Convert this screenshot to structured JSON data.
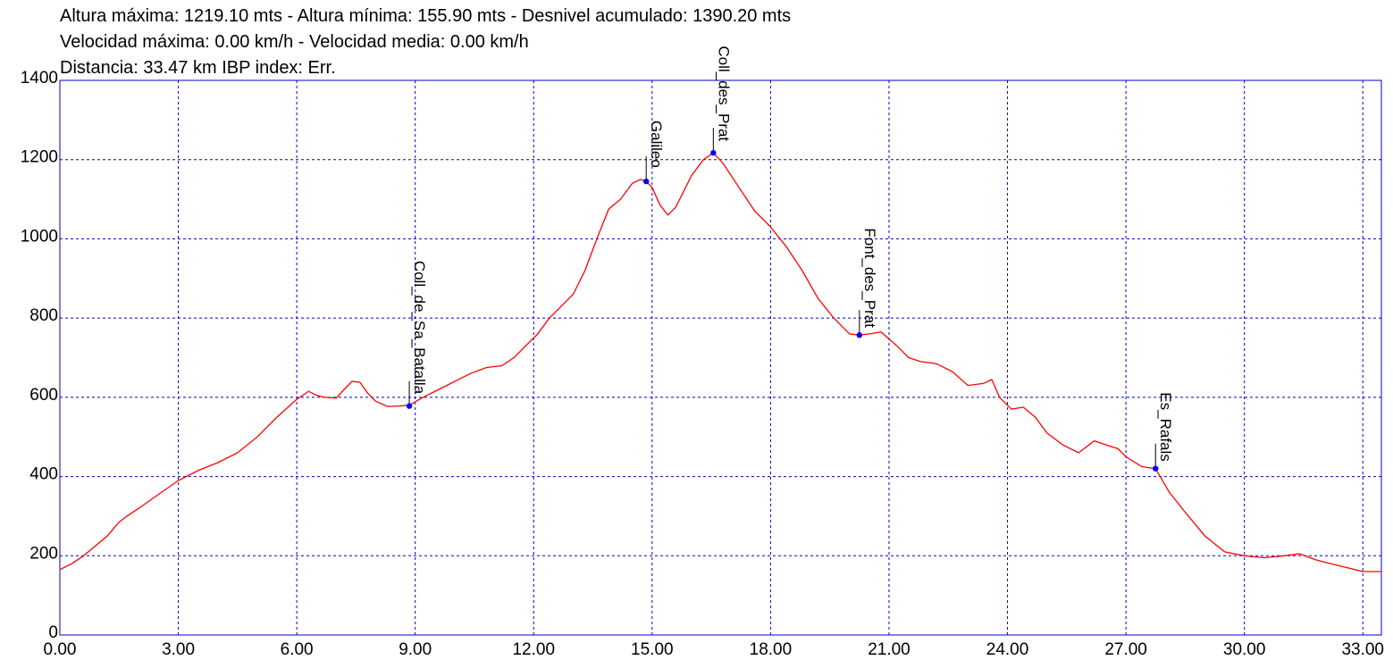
{
  "header": {
    "line1": "Altura máxima: 1219.10 mts - Altura mínima: 155.90 mts - Desnivel acumulado: 1390.20 mts",
    "line2": "Velocidad máxima: 0.00 km/h - Velocidad media: 0.00 km/h",
    "line3": "Distancia: 33.47 km IBP index: Err."
  },
  "colors": {
    "profile": "#ff0000",
    "grid": "#0000cc",
    "frame": "#0000cc",
    "waypoint": "#0000ff"
  },
  "chart_data": {
    "type": "line",
    "title": "",
    "xlabel": "",
    "ylabel": "",
    "xlim": [
      0,
      33.47
    ],
    "ylim": [
      0,
      1400
    ],
    "grid": true,
    "x_ticks": [
      "0.00",
      "3.00",
      "6.00",
      "9.00",
      "12.00",
      "15.00",
      "18.00",
      "21.00",
      "24.00",
      "27.00",
      "30.00",
      "33.00"
    ],
    "y_ticks": [
      "0",
      "200",
      "400",
      "600",
      "800",
      "1000",
      "1200",
      "1400"
    ],
    "series": [
      {
        "x": [
          0,
          0.3,
          0.6,
          0.9,
          1.2,
          1.5,
          1.7,
          2.0,
          2.5,
          3.0,
          3.5,
          4.0,
          4.5,
          5.0,
          5.5,
          6.0,
          6.3,
          6.5,
          6.7,
          7.0,
          7.2,
          7.4,
          7.6,
          7.8,
          8.0,
          8.3,
          8.6,
          8.85,
          9.2,
          9.6,
          10.0,
          10.4,
          10.8,
          11.2,
          11.5,
          11.8,
          12.1,
          12.4,
          12.7,
          13.0,
          13.3,
          13.6,
          13.9,
          14.2,
          14.5,
          14.7,
          14.85,
          15.0,
          15.2,
          15.4,
          15.6,
          15.8,
          16.0,
          16.3,
          16.55,
          16.8,
          17.2,
          17.6,
          18.0,
          18.4,
          18.8,
          19.2,
          19.6,
          20.0,
          20.25,
          20.5,
          20.8,
          21.2,
          21.5,
          21.8,
          22.2,
          22.6,
          23.0,
          23.4,
          23.6,
          23.8,
          24.1,
          24.4,
          24.7,
          25.0,
          25.4,
          25.8,
          26.2,
          26.5,
          26.8,
          27.0,
          27.4,
          27.75,
          28.1,
          28.5,
          29.0,
          29.5,
          30.0,
          30.5,
          31.0,
          31.4,
          31.8,
          32.2,
          32.6,
          33.0,
          33.47
        ],
        "y": [
          165,
          180,
          200,
          225,
          250,
          285,
          300,
          320,
          355,
          390,
          415,
          435,
          460,
          500,
          550,
          595,
          615,
          605,
          600,
          598,
          620,
          640,
          638,
          610,
          590,
          577,
          578,
          580,
          600,
          620,
          640,
          660,
          675,
          680,
          700,
          730,
          760,
          800,
          830,
          860,
          920,
          1000,
          1075,
          1100,
          1140,
          1150,
          1145,
          1130,
          1085,
          1060,
          1080,
          1120,
          1160,
          1200,
          1217,
          1190,
          1130,
          1070,
          1030,
          980,
          920,
          850,
          800,
          760,
          757,
          760,
          765,
          730,
          700,
          690,
          685,
          665,
          630,
          635,
          645,
          600,
          570,
          575,
          550,
          510,
          480,
          460,
          490,
          480,
          470,
          450,
          425,
          420,
          360,
          310,
          250,
          210,
          200,
          195,
          200,
          205,
          190,
          180,
          170,
          160,
          160
        ]
      }
    ],
    "waypoints": [
      {
        "name": "Coll_de_Sa_Batalla",
        "x": 8.85,
        "y": 578
      },
      {
        "name": "Galileo",
        "x": 14.85,
        "y": 1145
      },
      {
        "name": "Coll_des_Prat",
        "x": 16.55,
        "y": 1217
      },
      {
        "name": "Font_des_Prat",
        "x": 20.25,
        "y": 757
      },
      {
        "name": "Es_Rafals",
        "x": 27.75,
        "y": 420
      }
    ]
  }
}
